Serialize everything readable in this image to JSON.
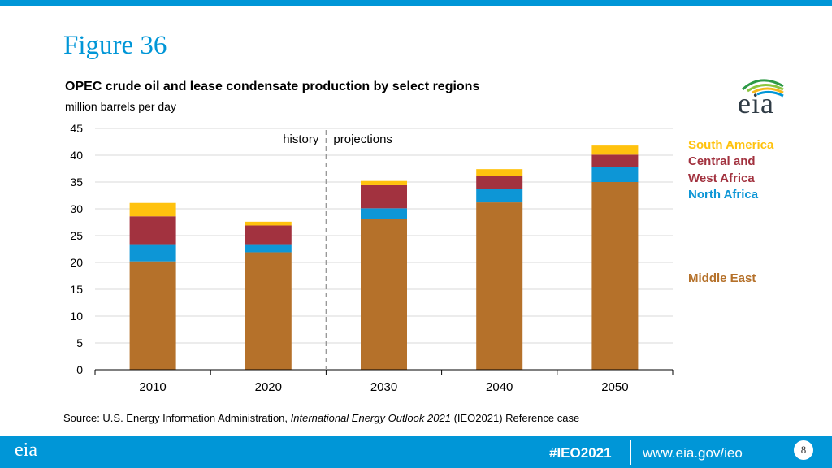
{
  "header": {
    "figure_title": "Figure 36"
  },
  "logo": {
    "text": "eia"
  },
  "chart_data": {
    "type": "stacked-bar",
    "title": "OPEC crude oil and lease condensate production by select regions",
    "subtitle": "million barrels per day",
    "categories": [
      "2010",
      "2020",
      "2030",
      "2040",
      "2050"
    ],
    "series": [
      {
        "name": "Middle East",
        "color": "#b5712a",
        "values": [
          20.2,
          21.9,
          28.1,
          31.2,
          35.0
        ]
      },
      {
        "name": "North Africa",
        "color": "#0d96d6",
        "values": [
          3.2,
          1.5,
          2.0,
          2.5,
          2.8
        ]
      },
      {
        "name": "Central and West Africa",
        "color": "#a2323f",
        "values": [
          5.2,
          3.5,
          4.3,
          2.4,
          2.3
        ]
      },
      {
        "name": "South America",
        "color": "#ffc20e",
        "values": [
          2.5,
          0.7,
          0.8,
          1.3,
          1.7
        ]
      }
    ],
    "ylim": [
      0,
      45
    ],
    "yticks": [
      0,
      5,
      10,
      15,
      20,
      25,
      30,
      35,
      40,
      45
    ],
    "annotations": {
      "history": "history",
      "projections": "projections"
    },
    "legend": [
      {
        "label": "South America",
        "color": "#ffc20e"
      },
      {
        "label": "Central and",
        "color": "#a2323f"
      },
      {
        "label": "West Africa",
        "color": "#a2323f"
      },
      {
        "label": "North Africa",
        "color": "#0d96d6"
      },
      {
        "label": "Middle East",
        "color": "#b5712a"
      }
    ]
  },
  "source": {
    "prefix": "Source:  U.S. Energy Information Administration, ",
    "italic": "International Energy Outlook 2021",
    "suffix": " (IEO2021) Reference case"
  },
  "footer": {
    "logo": "eia",
    "hashtag": "#IEO2021",
    "url": "www.eia.gov/ieo",
    "page": "8"
  }
}
